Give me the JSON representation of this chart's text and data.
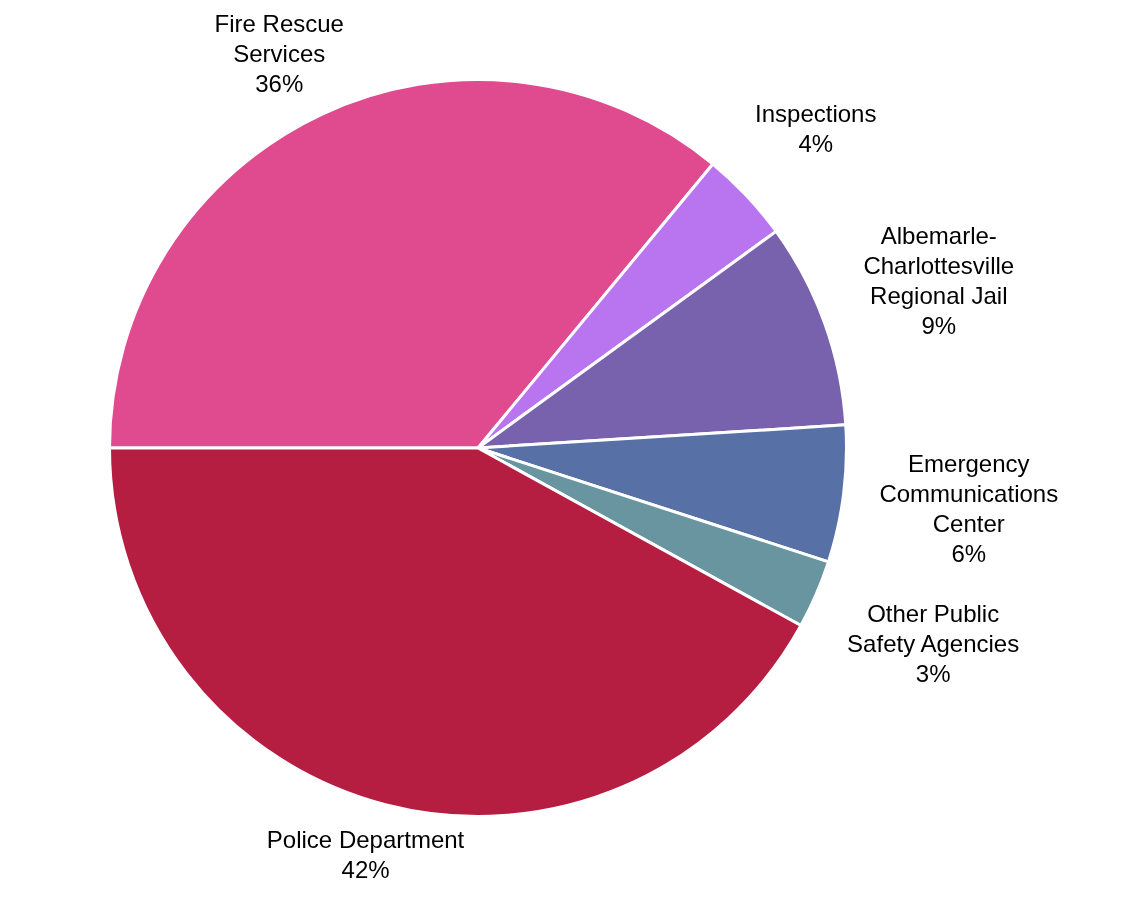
{
  "chart_data": {
    "type": "pie",
    "categories": [
      "Fire Rescue Services",
      "Inspections",
      "Albemarle-Charlottesville Regional Jail",
      "Emergency Communications Center",
      "Other Public Safety Agencies",
      "Police Department"
    ],
    "values": [
      36,
      4,
      9,
      6,
      3,
      42
    ],
    "value_labels": [
      "36%",
      "4%",
      "9%",
      "6%",
      "3%",
      "42%"
    ],
    "colors": [
      "#e04a8e",
      "#b975ef",
      "#7862ae",
      "#5770a6",
      "#6895a0",
      "#b51e40"
    ],
    "legend": false
  }
}
